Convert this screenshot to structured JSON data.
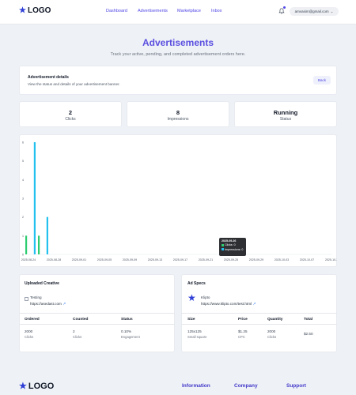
{
  "header": {
    "logo_text": "LOGO",
    "nav": [
      "Dashboard",
      "Advertisements",
      "Marketplace",
      "Inbox"
    ],
    "user_email": "amvasim@gmail.com",
    "icons": {
      "logo": "star-icon",
      "notifications": "bell-icon",
      "dropdown": "chevron-down-icon"
    }
  },
  "hero": {
    "title": "Advertisements",
    "subtitle": "Track your active, pending, and completed advertisement orders here."
  },
  "details": {
    "title": "Advertisement details",
    "description": "View the status and details of your advertisement banner.",
    "back_label": "Back"
  },
  "stats": [
    {
      "value": "2",
      "label": "Clicks"
    },
    {
      "value": "8",
      "label": "Impressions"
    },
    {
      "value": "Running",
      "label": "Status"
    }
  ],
  "chart_data": {
    "type": "bar",
    "categories": [
      "2025-08-24",
      "2025-08-25",
      "2025-08-26",
      "2025-08-27",
      "2025-08-28"
    ],
    "series": [
      {
        "name": "Clicks",
        "color": "#2ecc71",
        "values": [
          1,
          0,
          1,
          0,
          0
        ]
      },
      {
        "name": "Impressions",
        "color": "#22c1ee",
        "values": [
          0,
          6,
          0,
          2,
          0
        ]
      }
    ],
    "x_ticks": [
      "2025-08-24",
      "2025-08-28",
      "2025-09-01",
      "2025-09-05",
      "2025-09-09",
      "2025-09-13",
      "2025-09-17",
      "2025-09-21",
      "2025-09-25",
      "2025-09-29",
      "2025-10-03",
      "2025-10-07",
      "2025-10-11"
    ],
    "y_ticks": [
      "0",
      "1",
      "2",
      "3",
      "4",
      "5",
      "6"
    ],
    "ylim": [
      0,
      6
    ],
    "tooltip": {
      "date": "2025-09-26",
      "lines": [
        "Clicks: 0",
        "Impressions: 0"
      ]
    },
    "legend": "none"
  },
  "creative": {
    "title": "Uploaded Creative",
    "name": "Testing",
    "url": "https://asedast.com",
    "image_alt": "broken-image-icon",
    "table": {
      "headers": [
        "Ordered",
        "Counted",
        "Status"
      ],
      "values": [
        "2000",
        "2",
        "0.10%"
      ],
      "subs": [
        "Clicks",
        "Clicks",
        "Engagement"
      ]
    }
  },
  "specs": {
    "title": "Ad Specs",
    "name": "Klipto",
    "url": "https://www.klipto.com/test.html",
    "table": {
      "headers": [
        "Size",
        "Price",
        "Quantity",
        "Total"
      ],
      "values": [
        "125x125",
        "$1.25",
        "2000",
        "$2.50"
      ],
      "subs": [
        "Small square",
        "CPC",
        "Clicks",
        ""
      ]
    }
  },
  "footer": {
    "logo_text": "LOGO",
    "links": [
      "Information",
      "Company",
      "Support"
    ]
  }
}
